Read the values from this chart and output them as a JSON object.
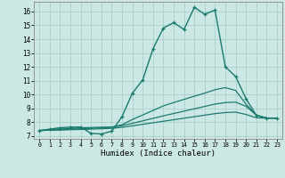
{
  "xlabel": "Humidex (Indice chaleur)",
  "xlim": [
    -0.5,
    23.5
  ],
  "ylim": [
    6.8,
    16.7
  ],
  "yticks": [
    7,
    8,
    9,
    10,
    11,
    12,
    13,
    14,
    15,
    16
  ],
  "xticks": [
    0,
    1,
    2,
    3,
    4,
    5,
    6,
    7,
    8,
    9,
    10,
    11,
    12,
    13,
    14,
    15,
    16,
    17,
    18,
    19,
    20,
    21,
    22,
    23
  ],
  "xtick_labels": [
    "0",
    "1",
    "2",
    "3",
    "4",
    "5",
    "6",
    "7",
    "8",
    "9",
    "10",
    "11",
    "12",
    "13",
    "14",
    "15",
    "16",
    "17",
    "18",
    "19",
    "20",
    "21",
    "22",
    "23"
  ],
  "bg_color": "#cce8e5",
  "line_color": "#1a7a6e",
  "grid_color": "#aacfcb",
  "lines": [
    {
      "x": [
        0,
        1,
        2,
        3,
        4,
        5,
        6,
        7,
        8,
        9,
        10,
        11,
        12,
        13,
        14,
        15,
        16,
        17,
        18,
        19,
        20,
        21,
        22,
        23
      ],
      "y": [
        7.4,
        7.5,
        7.6,
        7.65,
        7.65,
        7.2,
        7.15,
        7.35,
        8.4,
        10.1,
        11.05,
        13.3,
        14.8,
        15.2,
        14.7,
        16.3,
        15.8,
        16.1,
        12.0,
        11.3,
        9.7,
        8.5,
        8.3,
        8.3
      ],
      "marker": "+",
      "lw": 1.0
    },
    {
      "x": [
        0,
        1,
        2,
        3,
        4,
        5,
        6,
        7,
        8,
        9,
        10,
        11,
        12,
        13,
        14,
        15,
        16,
        17,
        18,
        19,
        20,
        21,
        22,
        23
      ],
      "y": [
        7.4,
        7.45,
        7.5,
        7.55,
        7.6,
        7.62,
        7.64,
        7.65,
        7.82,
        8.2,
        8.52,
        8.85,
        9.18,
        9.42,
        9.65,
        9.88,
        10.1,
        10.35,
        10.5,
        10.3,
        9.3,
        8.5,
        8.3,
        8.3
      ],
      "marker": null,
      "lw": 0.9
    },
    {
      "x": [
        0,
        1,
        2,
        3,
        4,
        5,
        6,
        7,
        8,
        9,
        10,
        11,
        12,
        13,
        14,
        15,
        16,
        17,
        18,
        19,
        20,
        21,
        22,
        23
      ],
      "y": [
        7.4,
        7.43,
        7.46,
        7.49,
        7.52,
        7.56,
        7.6,
        7.64,
        7.75,
        7.92,
        8.1,
        8.28,
        8.46,
        8.63,
        8.8,
        8.97,
        9.14,
        9.31,
        9.42,
        9.45,
        9.15,
        8.52,
        8.3,
        8.3
      ],
      "marker": null,
      "lw": 0.9
    },
    {
      "x": [
        0,
        1,
        2,
        3,
        4,
        5,
        6,
        7,
        8,
        9,
        10,
        11,
        12,
        13,
        14,
        15,
        16,
        17,
        18,
        19,
        20,
        21,
        22,
        23
      ],
      "y": [
        7.4,
        7.42,
        7.44,
        7.46,
        7.48,
        7.5,
        7.53,
        7.56,
        7.63,
        7.74,
        7.85,
        7.96,
        8.07,
        8.18,
        8.29,
        8.4,
        8.51,
        8.62,
        8.7,
        8.73,
        8.56,
        8.32,
        8.3,
        8.3
      ],
      "marker": null,
      "lw": 0.9
    }
  ]
}
